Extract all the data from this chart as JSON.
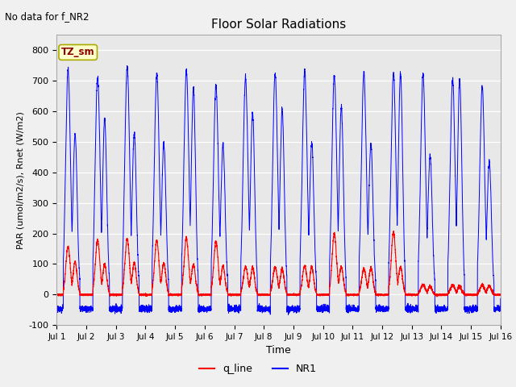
{
  "title": "Floor Solar Radiations",
  "xlabel": "Time",
  "ylabel": "PAR (umol/m2/s), Rnet (W/m2)",
  "ylim": [
    -100,
    850
  ],
  "yticks": [
    -100,
    0,
    100,
    200,
    300,
    400,
    500,
    600,
    700,
    800
  ],
  "note": "No data for f_NR2",
  "legend_labels": [
    "q_line",
    "NR1"
  ],
  "tz_label": "TZ_sm",
  "n_days": 15,
  "start_day": 1,
  "fig_bg": "#f0f0f0",
  "plot_bg": "#e8e8e8",
  "grid_color": "#ffffff"
}
